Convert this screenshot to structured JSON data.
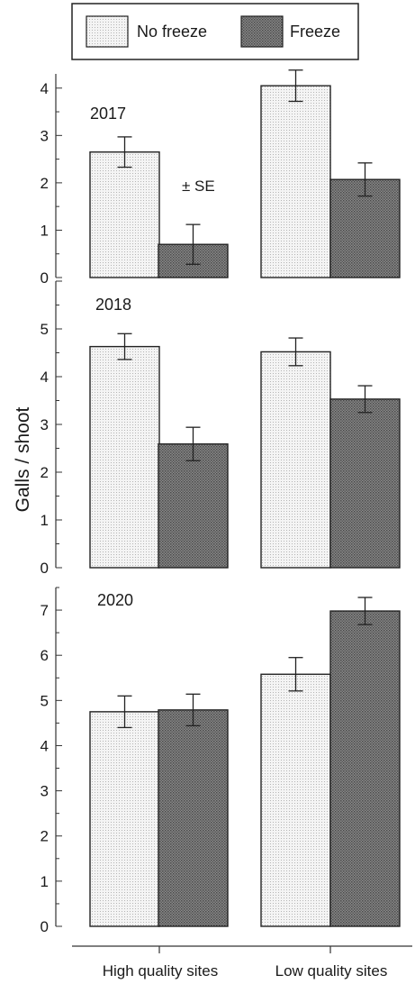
{
  "chart_data": {
    "type": "bar",
    "ylabel": "Galls / shoot",
    "categories": [
      "High quality sites",
      "Low quality sites"
    ],
    "legend": {
      "placement": "top",
      "entries": [
        {
          "name": "No freeze",
          "pattern": "light-dotted",
          "color": "#eeeeee"
        },
        {
          "name": "Freeze",
          "pattern": "dark-crosshatch",
          "color": "#777777"
        }
      ]
    },
    "error_bar_note": "± SE",
    "panels": [
      {
        "year": "2017",
        "ylim": [
          0,
          4.3
        ],
        "yticks": [
          "0",
          "1",
          "2",
          "3",
          "4"
        ],
        "series": [
          {
            "name": "No freeze",
            "values": [
              2.65,
              4.05
            ],
            "se": [
              0.32,
              0.33
            ]
          },
          {
            "name": "Freeze",
            "values": [
              0.7,
              2.07
            ],
            "se": [
              0.42,
              0.35
            ]
          }
        ]
      },
      {
        "year": "2018",
        "ylim": [
          0,
          6.0
        ],
        "yticks": [
          "0",
          "1",
          "2",
          "3",
          "4",
          "5"
        ],
        "series": [
          {
            "name": "No freeze",
            "values": [
              4.63,
              4.52
            ],
            "se": [
              0.27,
              0.29
            ]
          },
          {
            "name": "Freeze",
            "values": [
              2.59,
              3.53
            ],
            "se": [
              0.35,
              0.28
            ]
          }
        ]
      },
      {
        "year": "2020",
        "ylim": [
          0,
          7.5
        ],
        "yticks": [
          "0",
          "1",
          "2",
          "3",
          "4",
          "5",
          "6",
          "7"
        ],
        "series": [
          {
            "name": "No freeze",
            "values": [
              4.75,
              5.58
            ],
            "se": [
              0.35,
              0.37
            ]
          },
          {
            "name": "Freeze",
            "values": [
              4.79,
              6.98
            ],
            "se": [
              0.35,
              0.3
            ]
          }
        ]
      }
    ]
  }
}
